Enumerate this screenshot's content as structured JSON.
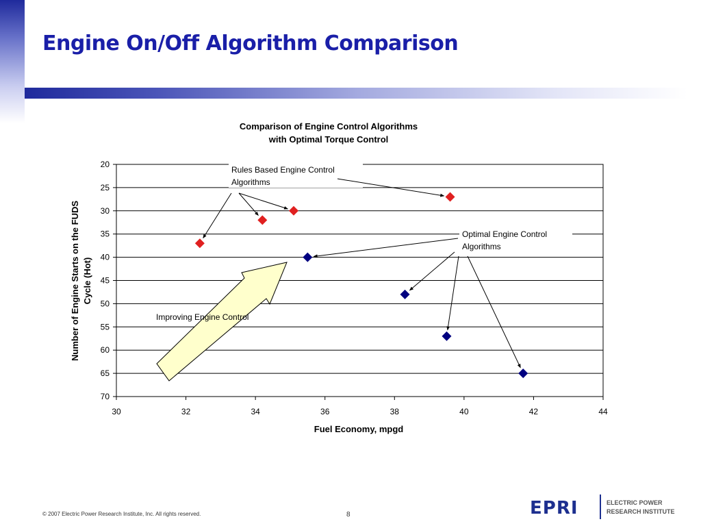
{
  "slide": {
    "title": "Engine On/Off Algorithm Comparison",
    "footer": "© 2007 Electric Power Research Institute, Inc. All rights reserved.",
    "page_number": "8",
    "logo": {
      "mark": "EPRI",
      "line1": "ELECTRIC POWER",
      "line2": "RESEARCH INSTITUTE"
    }
  },
  "colors": {
    "title": "#1a1fa8",
    "rules_based": "#e02020",
    "optimal": "#000080",
    "arrow_fill": "#ffffcc",
    "logo": "#1d2f8f"
  },
  "chart_data": {
    "type": "scatter",
    "title_lines": [
      "Comparison of Engine Control Algorithms",
      "with Optimal Torque Control"
    ],
    "xlabel": "Fuel Economy, mpgd",
    "ylabel_lines": [
      "Number of Engine Starts on the FUDS",
      "Cycle (Hot)"
    ],
    "xlim": [
      30,
      44
    ],
    "ylim": [
      20,
      70
    ],
    "y_inverted": true,
    "xticks": [
      30,
      32,
      34,
      36,
      38,
      40,
      42,
      44
    ],
    "yticks": [
      20,
      25,
      30,
      35,
      40,
      45,
      50,
      55,
      60,
      65,
      70
    ],
    "grid": "horizontal",
    "series": [
      {
        "label_lines": [
          "Rules Based Engine Control",
          "Algorithms"
        ],
        "color": "#e02020",
        "marker": "diamond",
        "points": [
          {
            "x": 32.4,
            "y": 37
          },
          {
            "x": 34.2,
            "y": 32
          },
          {
            "x": 35.1,
            "y": 30
          },
          {
            "x": 39.6,
            "y": 27
          }
        ]
      },
      {
        "label_lines": [
          "Optimal Engine Control",
          "Algorithms"
        ],
        "color": "#000080",
        "marker": "diamond",
        "points": [
          {
            "x": 35.5,
            "y": 40
          },
          {
            "x": 38.3,
            "y": 48
          },
          {
            "x": 39.5,
            "y": 57
          },
          {
            "x": 41.7,
            "y": 65
          }
        ]
      }
    ],
    "annotations": [
      {
        "text": "Improving Engine Control"
      }
    ]
  }
}
